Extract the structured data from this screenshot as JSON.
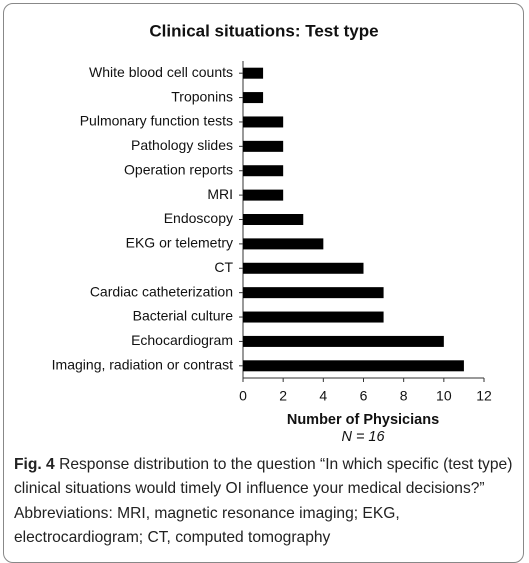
{
  "chart_data": {
    "type": "bar",
    "orientation": "horizontal",
    "title": "Clinical situations: Test type",
    "categories": [
      "White blood cell counts",
      "Troponins",
      "Pulmonary function tests",
      "Pathology slides",
      "Operation reports",
      "MRI",
      "Endoscopy",
      "EKG or telemetry",
      "CT",
      "Cardiac catheterization",
      "Bacterial culture",
      "Echocardiogram",
      "Imaging, radiation or contrast"
    ],
    "values": [
      1,
      1,
      2,
      2,
      2,
      2,
      3,
      4,
      6,
      7,
      7,
      10,
      11
    ],
    "color": "#000000",
    "xlim": [
      0,
      12
    ],
    "xticks": [
      0,
      2,
      4,
      6,
      8,
      10,
      12
    ],
    "xlabel": "Number of Physicians",
    "annotation": "N = 16",
    "grid": false
  },
  "caption": {
    "label": "Fig. 4",
    "text": "Response distribution to the question “In which specific (test type) clinical situations would timely OI influence your medical decisions?” Abbreviations: MRI, magnetic resonance imaging; EKG, electrocardiogram; CT, computed tomography"
  }
}
